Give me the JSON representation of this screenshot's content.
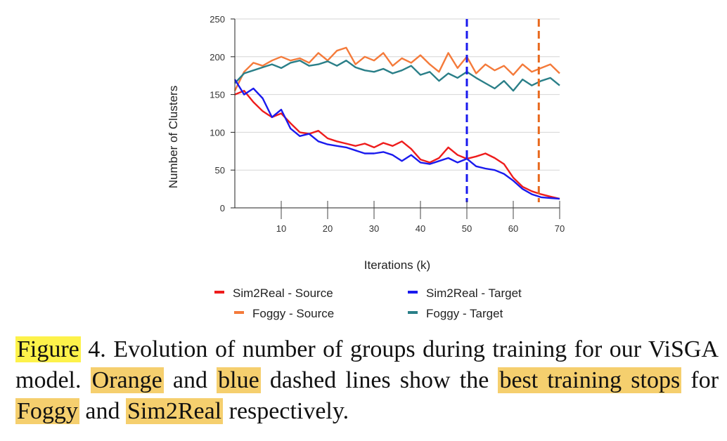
{
  "chart_data": {
    "type": "line",
    "xlabel": "Iterations (k)",
    "ylabel": "Number of Clusters",
    "xlim": [
      0,
      70
    ],
    "ylim": [
      0,
      250
    ],
    "xticks": [
      "10",
      "20",
      "30",
      "40",
      "50",
      "60",
      "70"
    ],
    "yticks": [
      "0",
      "50",
      "100",
      "150",
      "200",
      "250"
    ],
    "grid": "horizontal",
    "legend_position": "bottom",
    "series": [
      {
        "name": "Sim2Real - Source",
        "color": "#ee1c1c",
        "x": [
          0,
          2,
          4,
          6,
          8,
          10,
          12,
          14,
          16,
          18,
          20,
          22,
          24,
          26,
          28,
          30,
          32,
          34,
          36,
          38,
          40,
          42,
          44,
          46,
          48,
          50,
          52,
          54,
          56,
          58,
          60,
          62,
          64,
          66,
          68,
          70
        ],
        "y": [
          150,
          155,
          140,
          128,
          120,
          125,
          112,
          100,
          98,
          102,
          92,
          88,
          85,
          82,
          85,
          80,
          86,
          82,
          88,
          78,
          64,
          60,
          66,
          80,
          70,
          65,
          68,
          72,
          66,
          58,
          40,
          28,
          22,
          18,
          15,
          12
        ]
      },
      {
        "name": "Sim2Real - Target",
        "color": "#1a1aee",
        "x": [
          0,
          2,
          4,
          6,
          8,
          10,
          12,
          14,
          16,
          18,
          20,
          22,
          24,
          26,
          28,
          30,
          32,
          34,
          36,
          38,
          40,
          42,
          44,
          46,
          48,
          50,
          52,
          54,
          56,
          58,
          60,
          62,
          64,
          66,
          68,
          70
        ],
        "y": [
          170,
          150,
          158,
          145,
          120,
          130,
          105,
          95,
          98,
          88,
          84,
          82,
          80,
          76,
          72,
          72,
          74,
          70,
          62,
          70,
          60,
          58,
          62,
          66,
          60,
          65,
          55,
          52,
          50,
          45,
          36,
          25,
          18,
          14,
          13,
          12
        ]
      },
      {
        "name": "Foggy - Source",
        "color": "#f47a3a",
        "x": [
          0,
          2,
          4,
          6,
          8,
          10,
          12,
          14,
          16,
          18,
          20,
          22,
          24,
          26,
          28,
          30,
          32,
          34,
          36,
          38,
          40,
          42,
          44,
          46,
          48,
          50,
          52,
          54,
          56,
          58,
          60,
          62,
          64,
          66,
          68,
          70
        ],
        "y": [
          155,
          180,
          192,
          188,
          195,
          200,
          195,
          198,
          192,
          205,
          195,
          208,
          212,
          190,
          200,
          195,
          205,
          188,
          198,
          192,
          202,
          190,
          180,
          205,
          185,
          200,
          178,
          190,
          182,
          188,
          176,
          190,
          180,
          185,
          190,
          178
        ]
      },
      {
        "name": "Foggy - Target",
        "color": "#2a7f88",
        "x": [
          0,
          2,
          4,
          6,
          8,
          10,
          12,
          14,
          16,
          18,
          20,
          22,
          24,
          26,
          28,
          30,
          32,
          34,
          36,
          38,
          40,
          42,
          44,
          46,
          48,
          50,
          52,
          54,
          56,
          58,
          60,
          62,
          64,
          66,
          68,
          70
        ],
        "y": [
          165,
          178,
          182,
          186,
          190,
          185,
          192,
          195,
          188,
          190,
          194,
          188,
          195,
          186,
          182,
          180,
          184,
          178,
          182,
          188,
          176,
          180,
          168,
          178,
          172,
          180,
          172,
          165,
          158,
          168,
          155,
          170,
          162,
          168,
          172,
          162
        ]
      }
    ],
    "reference_lines": [
      {
        "x": 50,
        "color": "#1a1aee",
        "style": "dashed"
      },
      {
        "x": 65.5,
        "color": "#e8691e",
        "style": "dashed"
      }
    ]
  },
  "caption": {
    "w1": "Figure",
    "t1": " 4. Evolution of number of groups during training for our ViSGA model. ",
    "w2": "Orange",
    "t2": " and ",
    "w3": "blue",
    "t3": " dashed lines show the ",
    "w4": "best training stops",
    "t4": " for ",
    "w5": "Foggy",
    "t5": " and ",
    "w6": "Sim2Real",
    "t6": " respectively."
  }
}
